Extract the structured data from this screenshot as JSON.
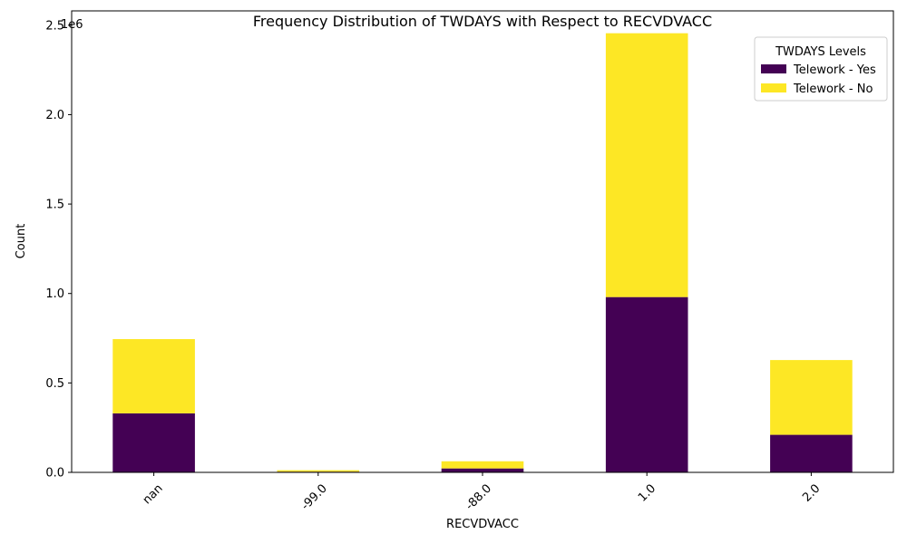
{
  "chart_data": {
    "type": "bar",
    "stacked": true,
    "title": "Frequency Distribution of TWDAYS with Respect to RECVDVACC",
    "xlabel": "RECVDVACC",
    "ylabel": "Count",
    "y_offset_label": "1e6",
    "categories": [
      "nan",
      "-99.0",
      "-88.0",
      "1.0",
      "2.0"
    ],
    "series": [
      {
        "name": "Telework - Yes",
        "color": "#440154",
        "values": [
          330000,
          4000,
          22000,
          980000,
          210000
        ]
      },
      {
        "name": "Telework - No",
        "color": "#fde725",
        "values": [
          415000,
          8000,
          40000,
          1475000,
          418000
        ]
      }
    ],
    "ylim": [
      0,
      2580000
    ],
    "y_ticks": [
      0,
      500000,
      1000000,
      1500000,
      2000000,
      2500000
    ],
    "y_tick_labels": [
      "0.0",
      "0.5",
      "1.0",
      "1.5",
      "2.0",
      "2.5"
    ],
    "legend": {
      "title": "TWDAYS Levels",
      "placement": "top-right"
    },
    "grid": false
  }
}
